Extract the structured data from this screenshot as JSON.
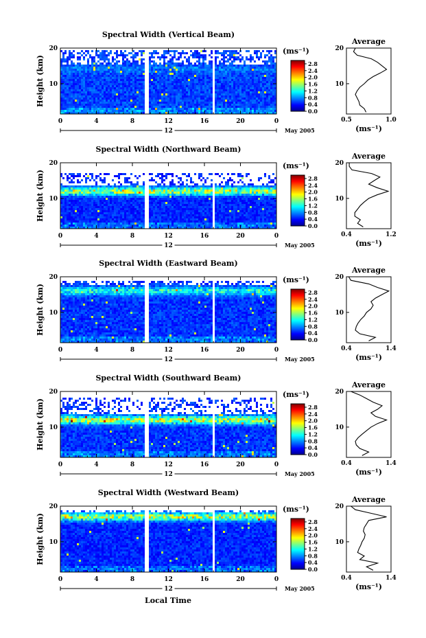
{
  "figure": {
    "date_label": "May 2005",
    "xlabel": "Local Time",
    "ylabel": "Height (km)",
    "unit_label": "(ms⁻¹)",
    "avg_title": "Average",
    "avg_xlabel": "(ms⁻¹)",
    "day_marker": "12",
    "time_ticks": [
      "0",
      "4",
      "8",
      "12",
      "16",
      "20",
      "0"
    ],
    "height_ticks": [
      "10",
      "20"
    ],
    "colorbar_ticks": [
      "0.0",
      "0.4",
      "0.8",
      "1.2",
      "1.6",
      "2.0",
      "2.4",
      "2.8"
    ],
    "data_gaps_hours": [
      [
        9.3,
        9.9
      ],
      [
        16.8,
        17.1
      ]
    ]
  },
  "chart_data": [
    {
      "type": "heatmap",
      "title": "Spectral Width (Vertical Beam)",
      "x_range_hours": [
        0,
        24
      ],
      "y_range_km": [
        1.5,
        20
      ],
      "color_range_ms": [
        0,
        3.0
      ],
      "mean_width_ms": 0.7,
      "layer_km": 14,
      "layer_strength": 0.15,
      "echo_top_km": 19.5,
      "top_coverage": 0.55,
      "average_profile": {
        "xlim": [
          0.5,
          1.0
        ],
        "xticks": [
          "0.5",
          "1.0"
        ],
        "height_km": [
          2,
          3,
          4,
          5,
          6,
          7,
          8,
          9,
          10,
          11,
          12,
          13,
          14,
          15,
          16,
          17,
          18,
          19,
          20
        ],
        "width_ms": [
          0.72,
          0.7,
          0.65,
          0.64,
          0.62,
          0.6,
          0.62,
          0.65,
          0.7,
          0.74,
          0.8,
          0.88,
          0.95,
          0.9,
          0.85,
          0.78,
          0.62,
          0.58,
          0.6
        ]
      }
    },
    {
      "type": "heatmap",
      "title": "Spectral Width (Northward Beam)",
      "x_range_hours": [
        0,
        24
      ],
      "y_range_km": [
        1.5,
        20
      ],
      "color_range_ms": [
        0,
        3.0
      ],
      "mean_width_ms": 0.6,
      "layer_km": 12,
      "layer_strength": 1.0,
      "echo_top_km": 17,
      "top_coverage": 0.35,
      "average_profile": {
        "xlim": [
          0.4,
          1.2
        ],
        "xticks": [
          "0.4",
          "1.2"
        ],
        "height_km": [
          2,
          3,
          4,
          5,
          6,
          7,
          8,
          9,
          10,
          11,
          12,
          13,
          14,
          15,
          16,
          17,
          18,
          19,
          20
        ],
        "width_ms": [
          0.7,
          0.6,
          0.65,
          0.55,
          0.55,
          0.6,
          0.65,
          0.72,
          0.8,
          0.95,
          1.15,
          0.95,
          0.8,
          0.9,
          1.0,
          0.85,
          0.5,
          0.45,
          0.45
        ]
      }
    },
    {
      "type": "heatmap",
      "title": "Spectral Width (Eastward Beam)",
      "x_range_hours": [
        0,
        24
      ],
      "y_range_km": [
        1.5,
        20
      ],
      "color_range_ms": [
        0,
        3.0
      ],
      "mean_width_ms": 0.65,
      "layer_km": 16,
      "layer_strength": 0.6,
      "echo_top_km": 19,
      "top_coverage": 0.45,
      "average_profile": {
        "xlim": [
          0.4,
          1.4
        ],
        "xticks": [
          "0.4",
          "1.4"
        ],
        "height_km": [
          2,
          3,
          4,
          5,
          6,
          7,
          8,
          9,
          10,
          11,
          12,
          13,
          14,
          15,
          16,
          17,
          18,
          19,
          20
        ],
        "width_ms": [
          0.9,
          1.05,
          0.7,
          0.6,
          0.62,
          0.66,
          0.72,
          0.8,
          0.85,
          0.95,
          1.0,
          0.95,
          1.05,
          1.2,
          1.35,
          1.1,
          0.9,
          0.5,
          0.45
        ]
      }
    },
    {
      "type": "heatmap",
      "title": "Spectral Width (Southward Beam)",
      "x_range_hours": [
        0,
        24
      ],
      "y_range_km": [
        1.5,
        20
      ],
      "color_range_ms": [
        0,
        3.0
      ],
      "mean_width_ms": 0.65,
      "layer_km": 12,
      "layer_strength": 1.0,
      "echo_top_km": 18,
      "top_coverage": 0.35,
      "average_profile": {
        "xlim": [
          0.4,
          1.4
        ],
        "xticks": [
          "0.4",
          "1.4"
        ],
        "height_km": [
          2,
          3,
          4,
          5,
          6,
          7,
          8,
          9,
          10,
          11,
          12,
          13,
          14,
          15,
          16,
          17,
          18,
          19,
          20
        ],
        "width_ms": [
          0.75,
          0.9,
          0.7,
          0.62,
          0.6,
          0.66,
          0.75,
          0.85,
          0.95,
          1.1,
          1.3,
          1.05,
          0.95,
          1.1,
          1.2,
          1.0,
          0.85,
          0.7,
          0.5
        ]
      }
    },
    {
      "type": "heatmap",
      "title": "Spectral Width (Westward Beam)",
      "x_range_hours": [
        0,
        24
      ],
      "y_range_km": [
        1.5,
        20
      ],
      "color_range_ms": [
        0,
        3.0
      ],
      "mean_width_ms": 0.6,
      "layer_km": 17,
      "layer_strength": 1.0,
      "echo_top_km": 19,
      "top_coverage": 0.4,
      "average_profile": {
        "xlim": [
          0.4,
          1.4
        ],
        "xticks": [
          "0.4",
          "1.4"
        ],
        "height_km": [
          2,
          3,
          4,
          5,
          6,
          7,
          8,
          9,
          10,
          11,
          12,
          13,
          14,
          15,
          16,
          17,
          18,
          19,
          20
        ],
        "width_ms": [
          1.0,
          0.85,
          1.1,
          0.7,
          0.8,
          0.65,
          0.68,
          0.72,
          0.75,
          0.8,
          0.82,
          0.78,
          0.8,
          0.85,
          0.9,
          1.3,
          0.95,
          0.6,
          0.5
        ]
      }
    }
  ]
}
